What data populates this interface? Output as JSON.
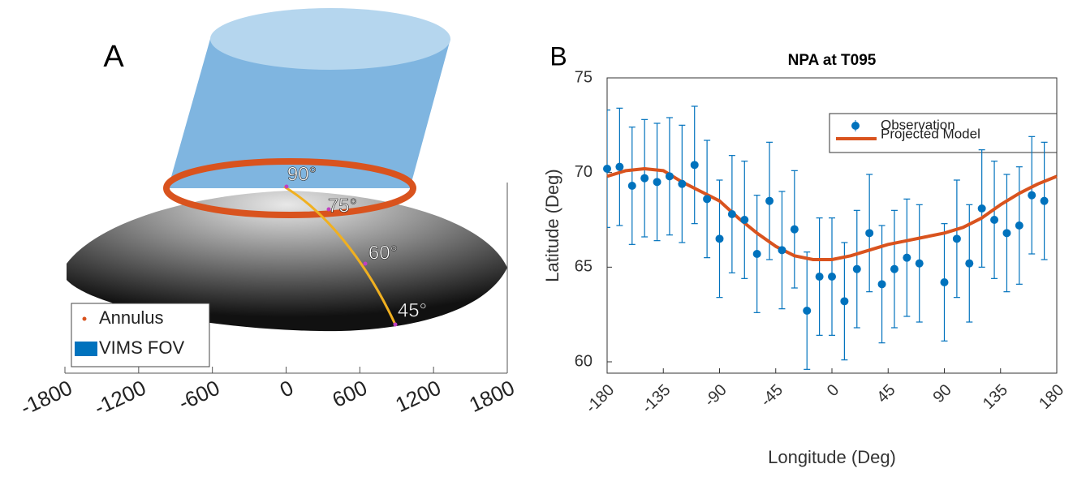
{
  "chart_data": [
    {
      "type": "render",
      "panel_label": "A",
      "xlim": [
        -1800,
        1800
      ],
      "xticks": [
        -1800,
        -1200,
        -600,
        0,
        600,
        1200,
        1800
      ],
      "annotations": [
        "90°",
        "75°",
        "60°",
        "45°"
      ],
      "series": [
        {
          "name": "Annulus",
          "color": "#d9531e"
        },
        {
          "name": "VIMS FOV",
          "color": "#0072bd"
        }
      ]
    },
    {
      "type": "scatter_line",
      "panel_label": "B",
      "title": "NPA at T095",
      "x_label": "Longitude (Deg)",
      "y_label": "Latitude (Deg)",
      "xlim": [
        -180,
        180
      ],
      "xticks": [
        -180,
        -135,
        -90,
        -45,
        0,
        45,
        90,
        135,
        180
      ],
      "ylim": [
        59.4,
        75
      ],
      "yticks": [
        60,
        65,
        70,
        75
      ],
      "legend": "top-right",
      "series": [
        {
          "name": "Observation",
          "color": "#0072bd",
          "error": 3.1,
          "x": [
            -180,
            -170,
            -160,
            -150,
            -140,
            -130,
            -120,
            -110,
            -100,
            -90,
            -80,
            -70,
            -60,
            -50,
            -40,
            -30,
            -20,
            -10,
            0,
            10,
            20,
            30,
            40,
            50,
            60,
            70,
            90,
            100,
            110,
            120,
            130,
            140,
            150,
            160,
            170
          ],
          "values": [
            70.2,
            70.3,
            69.3,
            69.7,
            69.5,
            69.8,
            69.4,
            70.4,
            68.6,
            66.5,
            67.8,
            67.5,
            65.7,
            68.5,
            65.9,
            67.0,
            62.7,
            64.5,
            64.5,
            63.2,
            64.9,
            66.8,
            64.1,
            64.9,
            65.5,
            65.2,
            64.2,
            66.5,
            65.2,
            68.1,
            67.5,
            66.8,
            67.2,
            68.8,
            68.5
          ]
        },
        {
          "name": "Projected Model",
          "color": "#d9531e",
          "x": [
            -180,
            -165,
            -150,
            -135,
            -120,
            -105,
            -90,
            -75,
            -60,
            -45,
            -30,
            -15,
            0,
            15,
            30,
            45,
            60,
            75,
            90,
            105,
            120,
            135,
            150,
            165,
            180
          ],
          "values": [
            69.8,
            70.1,
            70.2,
            70.1,
            69.5,
            69.0,
            68.5,
            67.6,
            66.8,
            66.1,
            65.6,
            65.4,
            65.4,
            65.6,
            65.9,
            66.2,
            66.4,
            66.6,
            66.8,
            67.1,
            67.6,
            68.3,
            68.9,
            69.4,
            69.8
          ]
        }
      ]
    }
  ]
}
